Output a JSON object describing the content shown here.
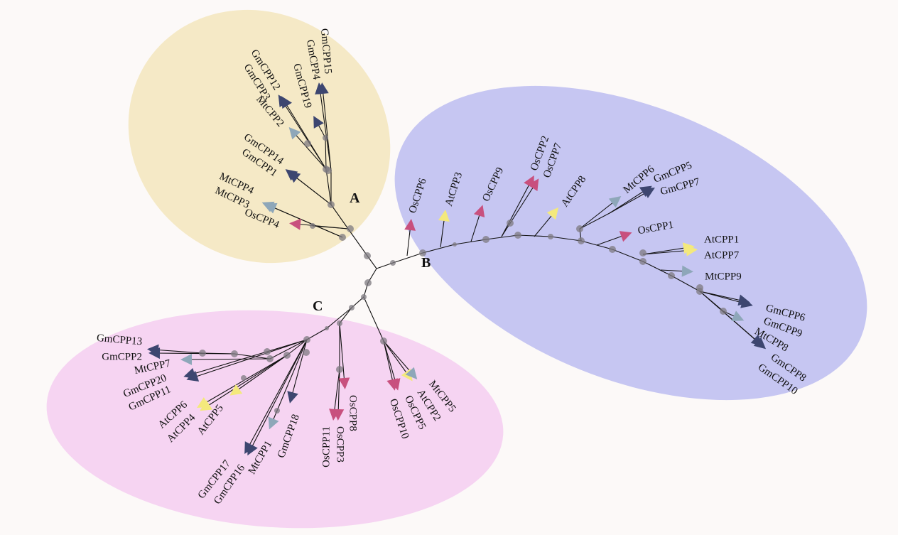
{
  "colors": {
    "background": "#fcf9f8",
    "clade_A": "#f5e9c6",
    "clade_B": "#c6c6f2",
    "clade_C": "#f6d4f2",
    "Gm": "#3d4670",
    "Mt": "#8ea7b9",
    "Os": "#c8507e",
    "At": "#f4e97c",
    "bootstrap_dot": "#7d7a80"
  },
  "clades": [
    {
      "id": "A",
      "label": "A"
    },
    {
      "id": "B",
      "label": "B"
    },
    {
      "id": "C",
      "label": "C"
    }
  ],
  "leaves": [
    {
      "name": "OsCPP4",
      "species": "Os",
      "clade": "A"
    },
    {
      "name": "MtCPP4",
      "species": "Mt",
      "clade": "A"
    },
    {
      "name": "MtCPP3",
      "species": "Mt",
      "clade": "A"
    },
    {
      "name": "GmCPP14",
      "species": "Gm",
      "clade": "A"
    },
    {
      "name": "GmCPP1",
      "species": "Gm",
      "clade": "A"
    },
    {
      "name": "MtCPP2",
      "species": "Mt",
      "clade": "A"
    },
    {
      "name": "GmCPP12",
      "species": "Gm",
      "clade": "A"
    },
    {
      "name": "GmCPP3",
      "species": "Gm",
      "clade": "A"
    },
    {
      "name": "GmCPP19",
      "species": "Gm",
      "clade": "A"
    },
    {
      "name": "GmCPP4",
      "species": "Gm",
      "clade": "A"
    },
    {
      "name": "GmCPP15",
      "species": "Gm",
      "clade": "A"
    },
    {
      "name": "OsCPP6",
      "species": "Os",
      "clade": "B"
    },
    {
      "name": "AtCPP3",
      "species": "At",
      "clade": "B"
    },
    {
      "name": "OsCPP9",
      "species": "Os",
      "clade": "B"
    },
    {
      "name": "OsCPP2",
      "species": "Os",
      "clade": "B"
    },
    {
      "name": "OsCPP7",
      "species": "Os",
      "clade": "B"
    },
    {
      "name": "AtCPP8",
      "species": "At",
      "clade": "B"
    },
    {
      "name": "MtCPP6",
      "species": "Mt",
      "clade": "B"
    },
    {
      "name": "GmCPP5",
      "species": "Gm",
      "clade": "B"
    },
    {
      "name": "GmCPP7",
      "species": "Gm",
      "clade": "B"
    },
    {
      "name": "OsCPP1",
      "species": "Os",
      "clade": "B"
    },
    {
      "name": "AtCPP1",
      "species": "At",
      "clade": "B"
    },
    {
      "name": "AtCPP7",
      "species": "At",
      "clade": "B"
    },
    {
      "name": "MtCPP9",
      "species": "Mt",
      "clade": "B"
    },
    {
      "name": "GmCPP6",
      "species": "Gm",
      "clade": "B"
    },
    {
      "name": "GmCPP9",
      "species": "Gm",
      "clade": "B"
    },
    {
      "name": "MtCPP8",
      "species": "Mt",
      "clade": "B"
    },
    {
      "name": "GmCPP8",
      "species": "Gm",
      "clade": "B"
    },
    {
      "name": "GmCPP10",
      "species": "Gm",
      "clade": "B"
    },
    {
      "name": "GmCPP13",
      "species": "Gm",
      "clade": "C"
    },
    {
      "name": "GmCPP2",
      "species": "Gm",
      "clade": "C"
    },
    {
      "name": "MtCPP7",
      "species": "Mt",
      "clade": "C"
    },
    {
      "name": "GmCPP20",
      "species": "Gm",
      "clade": "C"
    },
    {
      "name": "GmCPP11",
      "species": "Gm",
      "clade": "C"
    },
    {
      "name": "AtCPP6",
      "species": "At",
      "clade": "C"
    },
    {
      "name": "AtCPP4",
      "species": "At",
      "clade": "C"
    },
    {
      "name": "AtCPP5",
      "species": "At",
      "clade": "C"
    },
    {
      "name": "GmCPP17",
      "species": "Gm",
      "clade": "C"
    },
    {
      "name": "GmCPP16",
      "species": "Gm",
      "clade": "C"
    },
    {
      "name": "MtCPP1",
      "species": "Mt",
      "clade": "C"
    },
    {
      "name": "GmCPP18",
      "species": "Gm",
      "clade": "C"
    },
    {
      "name": "OsCPP11",
      "species": "Os",
      "clade": "C"
    },
    {
      "name": "OsCPP3",
      "species": "Os",
      "clade": "C"
    },
    {
      "name": "OsCPP8",
      "species": "Os",
      "clade": "C"
    },
    {
      "name": "OsCPP10",
      "species": "Os",
      "clade": "C"
    },
    {
      "name": "OsCPP5",
      "species": "Os",
      "clade": "C"
    },
    {
      "name": "AtCPP2",
      "species": "At",
      "clade": "C"
    },
    {
      "name": "MtCPP5",
      "species": "Mt",
      "clade": "C"
    }
  ]
}
